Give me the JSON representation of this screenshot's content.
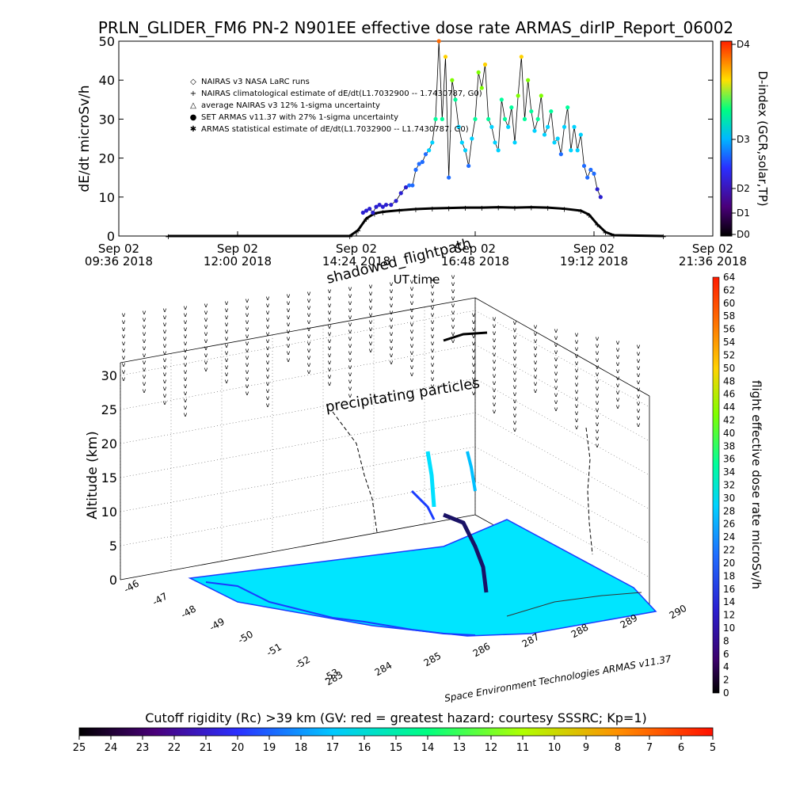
{
  "title": "PRLN_GLIDER_FM6 PN-2 N901EE effective dose rate ARMAS_dirIP_Report_06002",
  "colors": {
    "nairas_curve": "#000000",
    "ground_fill": "#00e5ff",
    "coast": "#1a3cff",
    "background": "#ffffff",
    "precip_tick": "#c00000"
  },
  "chart_data": [
    {
      "type": "scatter",
      "name": "time-series",
      "ylabel": "dE/dt microSv/h",
      "xlabel": "UT time",
      "ylim": [
        0,
        50
      ],
      "yticks": [
        0,
        10,
        20,
        30,
        40,
        50
      ],
      "xticks": [
        {
          "t": 0,
          "l1": "Sep 02",
          "l2": "09:36 2018"
        },
        {
          "t": 144,
          "l1": "Sep 02",
          "l2": "12:00 2018"
        },
        {
          "t": 288,
          "l1": "Sep 02",
          "l2": "14:24 2018"
        },
        {
          "t": 432,
          "l1": "Sep 02",
          "l2": "16:48 2018"
        },
        {
          "t": 576,
          "l1": "Sep 02",
          "l2": "19:12 2018"
        },
        {
          "t": 720,
          "l1": "Sep 02",
          "l2": "21:36 2018"
        }
      ],
      "xlim_minutes_from_0936": [
        0,
        720
      ],
      "legend": [
        {
          "symbol": "◇",
          "label": "NAIRAS v3 NASA LaRC runs"
        },
        {
          "symbol": "+",
          "label": "NAIRAS climatological estimate of dE/dt(L1.7032900 -- 1.7430787, G0)"
        },
        {
          "symbol": "△",
          "label": "average NAIRAS v3 12% 1-sigma uncertainty"
        },
        {
          "symbol": "●",
          "label": "SET ARMAS v11.37 with 27% 1-sigma uncertainty"
        },
        {
          "symbol": "✱",
          "label": "ARMAS statistical estimate of dE/dt(L1.7032900 -- L1.7430787, G0)"
        }
      ],
      "legend_placement": "upper-left",
      "nairas_series": {
        "t": [
          60,
          280,
          290,
          300,
          310,
          320,
          340,
          360,
          380,
          400,
          420,
          440,
          460,
          480,
          500,
          520,
          540,
          560,
          570,
          580,
          590,
          600,
          660
        ],
        "v": [
          0,
          0,
          1.5,
          4.5,
          5.8,
          6.2,
          6.6,
          6.9,
          7.1,
          7.2,
          7.3,
          7.3,
          7.4,
          7.3,
          7.4,
          7.3,
          7.0,
          6.5,
          5.5,
          3.0,
          1.0,
          0.2,
          0
        ]
      },
      "armas_series": {
        "t": [
          296,
          300,
          304,
          308,
          312,
          316,
          320,
          324,
          330,
          336,
          342,
          348,
          352,
          356,
          360,
          364,
          368,
          372,
          376,
          380,
          384,
          388,
          392,
          396,
          400,
          404,
          408,
          412,
          416,
          420,
          424,
          428,
          432,
          436,
          440,
          444,
          448,
          452,
          456,
          460,
          464,
          468,
          472,
          476,
          480,
          484,
          488,
          492,
          496,
          500,
          504,
          508,
          512,
          516,
          520,
          524,
          528,
          532,
          536,
          540,
          544,
          548,
          552,
          556,
          560,
          564,
          568,
          572,
          576,
          580,
          584
        ],
        "v": [
          6,
          6.5,
          7,
          6,
          7.5,
          8,
          7.5,
          8,
          8,
          9,
          11,
          12.5,
          13,
          13,
          17,
          18.5,
          19,
          21,
          22,
          24,
          30,
          50,
          30,
          46,
          15,
          40,
          35,
          28,
          24,
          22,
          18,
          25,
          30,
          42,
          38,
          44,
          30,
          28,
          24,
          22,
          35,
          30,
          28,
          33,
          24,
          36,
          46,
          30,
          40,
          32,
          27,
          30,
          36,
          26,
          28,
          32,
          24,
          25,
          21,
          28,
          33,
          22,
          28,
          22,
          26,
          18,
          15,
          17,
          16,
          12,
          10
        ]
      }
    },
    {
      "type": "scatter",
      "name": "3d-altitude-map",
      "zlabel": "Altitude (km)",
      "zticks": [
        0,
        5,
        10,
        15,
        20,
        25,
        30
      ],
      "lat_ticks": [
        "-46",
        "-47",
        "-48",
        "-49",
        "-50",
        "-51",
        "-52",
        "-53"
      ],
      "lon_ticks": [
        "283",
        "284",
        "285",
        "286",
        "287",
        "288",
        "289",
        "290"
      ],
      "annotations": [
        "shadowed_flightpath",
        "precipitating particles"
      ],
      "color_bar": {
        "label": "flight effective dose rate microSv/h",
        "ticks": [
          0,
          2,
          4,
          6,
          8,
          10,
          12,
          14,
          16,
          18,
          20,
          22,
          24,
          26,
          28,
          30,
          32,
          34,
          36,
          38,
          40,
          42,
          44,
          46,
          48,
          50,
          52,
          54,
          56,
          58,
          60,
          62,
          64
        ]
      },
      "credit": "Space Environment Technologies ARMAS v11.37"
    },
    {
      "type": "heatmap",
      "name": "cutoff-rigidity-colorbar",
      "label": "Cutoff rigidity (Rc) >39 km (GV: red = greatest hazard; courtesy SSSRC; Kp=1)",
      "ticks": [
        25,
        24,
        23,
        22,
        21,
        20,
        19,
        18,
        17,
        16,
        15,
        14,
        13,
        12,
        11,
        10,
        9,
        8,
        7,
        6,
        5
      ]
    }
  ],
  "dindex": {
    "label": "D-index (GCR,solar,TP)",
    "ticks": [
      "D4",
      "D3",
      "D2",
      "D1",
      "D0"
    ]
  }
}
